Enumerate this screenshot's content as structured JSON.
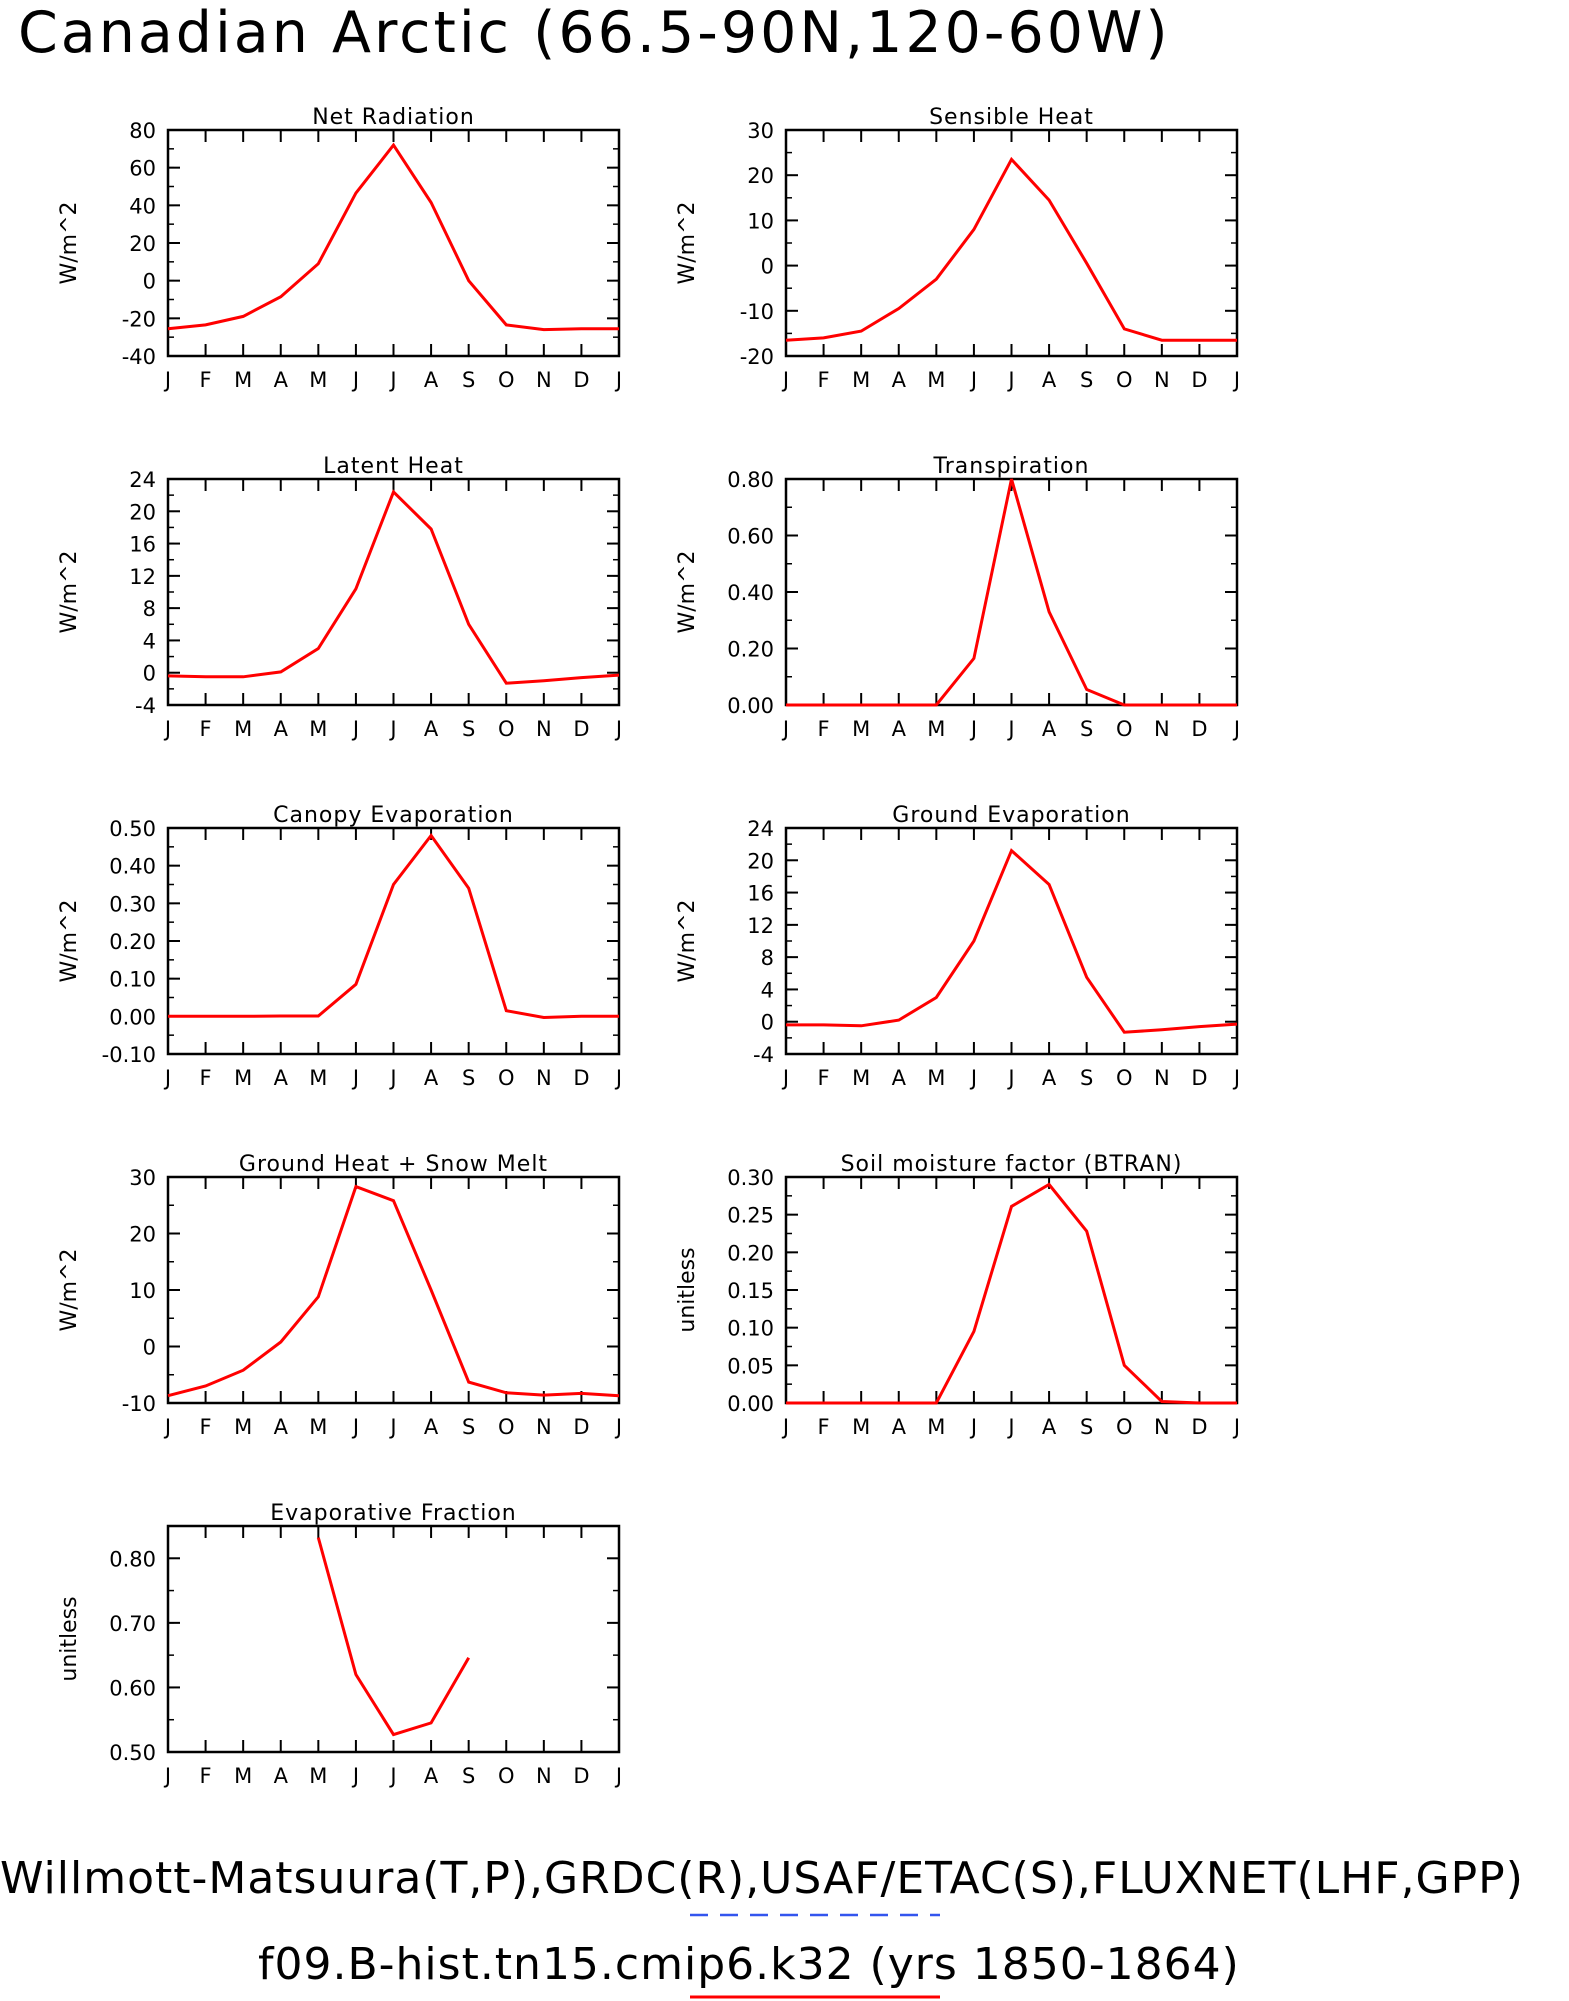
{
  "page": {
    "title": "Canadian Arctic (66.5-90N,120-60W)",
    "footer_obs": "Willmott-Matsuura(T,P),GRDC(R),USAF/ETAC(S),FLUXNET(LHF,GPP)",
    "footer_model": "f09.B-hist.tn15.cmip6.k32 (yrs 1850-1864)",
    "colors": {
      "model_line": "#ff0000",
      "obs_line": "#3355ee"
    }
  },
  "chart_data": [
    {
      "type": "line",
      "title": "Net Radiation",
      "ylabel": "W/m^2",
      "ylim": [
        -40,
        80
      ],
      "yticks": [
        -40,
        -20,
        0,
        20,
        40,
        60,
        80
      ],
      "ytick_labels": [
        "-40",
        "-20",
        "0",
        "20",
        "40",
        "60",
        "80"
      ],
      "categories": [
        "J",
        "F",
        "M",
        "A",
        "M",
        "J",
        "J",
        "A",
        "S",
        "O",
        "N",
        "D",
        "J"
      ],
      "series": [
        {
          "values": [
            -25.5,
            -23.5,
            -19,
            -8.5,
            9,
            46.5,
            72,
            41.5,
            0,
            -23.5,
            -26,
            -25.5,
            -25.5
          ]
        }
      ]
    },
    {
      "type": "line",
      "title": "Sensible Heat",
      "ylabel": "W/m^2",
      "ylim": [
        -20,
        30
      ],
      "yticks": [
        -20,
        -10,
        0,
        10,
        20,
        30
      ],
      "ytick_labels": [
        "-20",
        "-10",
        "0",
        "10",
        "20",
        "30"
      ],
      "categories": [
        "J",
        "F",
        "M",
        "A",
        "M",
        "J",
        "J",
        "A",
        "S",
        "O",
        "N",
        "D",
        "J"
      ],
      "series": [
        {
          "values": [
            -16.5,
            -16,
            -14.5,
            -9.5,
            -3,
            8,
            23.5,
            14.5,
            0.5,
            -14,
            -16.5,
            -16.5,
            -16.5
          ]
        }
      ]
    },
    {
      "type": "line",
      "title": "Latent Heat",
      "ylabel": "W/m^2",
      "ylim": [
        -4,
        24
      ],
      "yticks": [
        -4,
        0,
        4,
        8,
        12,
        16,
        20,
        24
      ],
      "ytick_labels": [
        "-4",
        "0",
        "4",
        "8",
        "12",
        "16",
        "20",
        "24"
      ],
      "categories": [
        "J",
        "F",
        "M",
        "A",
        "M",
        "J",
        "J",
        "A",
        "S",
        "O",
        "N",
        "D",
        "J"
      ],
      "series": [
        {
          "values": [
            -0.4,
            -0.5,
            -0.5,
            0.1,
            3,
            10.4,
            22.4,
            17.8,
            6,
            -1.3,
            -1,
            -0.6,
            -0.3
          ]
        }
      ]
    },
    {
      "type": "line",
      "title": "Transpiration",
      "ylabel": "W/m^2",
      "ylim": [
        0,
        0.8
      ],
      "yticks": [
        0,
        0.2,
        0.4,
        0.6,
        0.8
      ],
      "ytick_labels": [
        "0.00",
        "0.20",
        "0.40",
        "0.60",
        "0.80"
      ],
      "categories": [
        "J",
        "F",
        "M",
        "A",
        "M",
        "J",
        "J",
        "A",
        "S",
        "O",
        "N",
        "D",
        "J"
      ],
      "series": [
        {
          "values": [
            0,
            0,
            0,
            0,
            0,
            0.165,
            0.8,
            0.33,
            0.055,
            0,
            0,
            0,
            0
          ]
        }
      ]
    },
    {
      "type": "line",
      "title": "Canopy Evaporation",
      "ylabel": "W/m^2",
      "ylim": [
        -0.1,
        0.5
      ],
      "yticks": [
        -0.1,
        0,
        0.1,
        0.2,
        0.3,
        0.4,
        0.5
      ],
      "ytick_labels": [
        "-0.10",
        "0.00",
        "0.10",
        "0.20",
        "0.30",
        "0.40",
        "0.50"
      ],
      "categories": [
        "J",
        "F",
        "M",
        "A",
        "M",
        "J",
        "J",
        "A",
        "S",
        "O",
        "N",
        "D",
        "J"
      ],
      "series": [
        {
          "values": [
            0,
            0,
            0,
            0.001,
            0.001,
            0.085,
            0.35,
            0.48,
            0.34,
            0.015,
            -0.003,
            0,
            0
          ]
        }
      ]
    },
    {
      "type": "line",
      "title": "Ground Evaporation",
      "ylabel": "W/m^2",
      "ylim": [
        -4,
        24
      ],
      "yticks": [
        -4,
        0,
        4,
        8,
        12,
        16,
        20,
        24
      ],
      "ytick_labels": [
        "-4",
        "0",
        "4",
        "8",
        "12",
        "16",
        "20",
        "24"
      ],
      "categories": [
        "J",
        "F",
        "M",
        "A",
        "M",
        "J",
        "J",
        "A",
        "S",
        "O",
        "N",
        "D",
        "J"
      ],
      "series": [
        {
          "values": [
            -0.4,
            -0.4,
            -0.5,
            0.2,
            3,
            10,
            21.2,
            17,
            5.5,
            -1.3,
            -1,
            -0.6,
            -0.3
          ]
        }
      ]
    },
    {
      "type": "line",
      "title": "Ground Heat + Snow Melt",
      "ylabel": "W/m^2",
      "ylim": [
        -10,
        30
      ],
      "yticks": [
        -10,
        0,
        10,
        20,
        30
      ],
      "ytick_labels": [
        "-10",
        "0",
        "10",
        "20",
        "30"
      ],
      "categories": [
        "J",
        "F",
        "M",
        "A",
        "M",
        "J",
        "J",
        "A",
        "S",
        "O",
        "N",
        "D",
        "J"
      ],
      "series": [
        {
          "values": [
            -8.7,
            -7,
            -4.2,
            0.8,
            8.8,
            28.3,
            25.8,
            10,
            -6.3,
            -8.2,
            -8.6,
            -8.3,
            -8.7
          ]
        }
      ]
    },
    {
      "type": "line",
      "title": "Soil moisture factor (BTRAN)",
      "ylabel": "unitless",
      "ylim": [
        0,
        0.3
      ],
      "yticks": [
        0,
        0.05,
        0.1,
        0.15,
        0.2,
        0.25,
        0.3
      ],
      "ytick_labels": [
        "0.00",
        "0.05",
        "0.10",
        "0.15",
        "0.20",
        "0.25",
        "0.30"
      ],
      "categories": [
        "J",
        "F",
        "M",
        "A",
        "M",
        "J",
        "J",
        "A",
        "S",
        "O",
        "N",
        "D",
        "J"
      ],
      "series": [
        {
          "values": [
            0,
            0,
            0,
            0,
            0,
            0.095,
            0.261,
            0.29,
            0.228,
            0.05,
            0.002,
            0,
            0
          ]
        }
      ]
    },
    {
      "type": "line",
      "title": "Evaporative Fraction",
      "ylabel": "unitless",
      "ylim": [
        0.5,
        0.85
      ],
      "yticks": [
        0.5,
        0.6,
        0.7,
        0.8
      ],
      "ytick_labels": [
        "0.50",
        "0.60",
        "0.70",
        "0.80"
      ],
      "categories": [
        "J",
        "F",
        "M",
        "A",
        "M",
        "J",
        "J",
        "A",
        "S",
        "O",
        "N",
        "D",
        "J"
      ],
      "series": [
        {
          "values": [
            null,
            null,
            null,
            null,
            0.832,
            0.62,
            0.527,
            0.545,
            0.646,
            null,
            null,
            null,
            null
          ]
        }
      ]
    }
  ]
}
